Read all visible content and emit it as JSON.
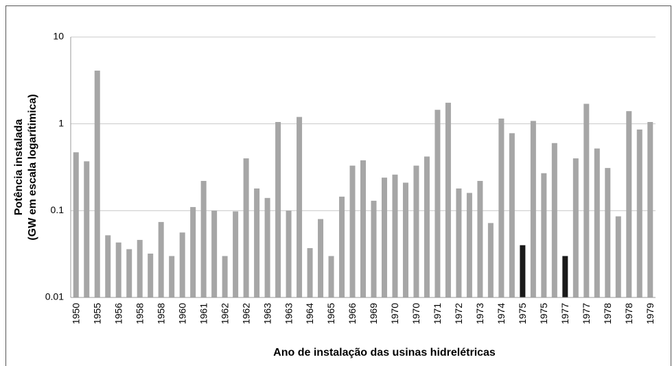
{
  "chart_data": {
    "type": "bar",
    "xlabel": "Ano de instalação das usinas hidrelétricas",
    "ylabel": [
      "Potência instalada",
      "(GW em escala logarítimica)"
    ],
    "categories": [
      "1950",
      null,
      "1955",
      null,
      "1956",
      null,
      "1958",
      null,
      "1958",
      null,
      "1960",
      null,
      "1961",
      null,
      "1962",
      null,
      "1962",
      null,
      "1963",
      null,
      "1963",
      null,
      "1964",
      null,
      "1965",
      null,
      "1966",
      null,
      "1969",
      null,
      "1970",
      null,
      "1970",
      null,
      "1971",
      null,
      "1972",
      null,
      "1973",
      null,
      "1974",
      null,
      "1975",
      null,
      "1975",
      null,
      "1977",
      null,
      "1977",
      null,
      "1978",
      null,
      "1978",
      null,
      "1979"
    ],
    "values": [
      0.47,
      0.37,
      4.1,
      0.052,
      0.043,
      0.036,
      0.046,
      0.032,
      0.074,
      0.03,
      0.056,
      0.11,
      0.22,
      0.1,
      0.03,
      0.098,
      0.4,
      0.18,
      0.14,
      1.05,
      0.1,
      1.2,
      0.037,
      0.08,
      0.03,
      0.145,
      0.33,
      0.38,
      0.13,
      0.24,
      0.26,
      0.21,
      0.33,
      0.42,
      1.45,
      1.75,
      0.18,
      0.16,
      0.22,
      0.072,
      1.15,
      0.78,
      0.04,
      1.08,
      0.27,
      0.6,
      0.03,
      0.4,
      1.7,
      0.52,
      0.31,
      0.086,
      1.4,
      0.86,
      1.05
    ],
    "colors": [
      "#a6a6a6",
      "#a6a6a6",
      "#a6a6a6",
      "#a6a6a6",
      "#a6a6a6",
      "#a6a6a6",
      "#a6a6a6",
      "#a6a6a6",
      "#a6a6a6",
      "#a6a6a6",
      "#a6a6a6",
      "#a6a6a6",
      "#a6a6a6",
      "#a6a6a6",
      "#a6a6a6",
      "#a6a6a6",
      "#a6a6a6",
      "#a6a6a6",
      "#a6a6a6",
      "#a6a6a6",
      "#a6a6a6",
      "#a6a6a6",
      "#a6a6a6",
      "#a6a6a6",
      "#a6a6a6",
      "#a6a6a6",
      "#a6a6a6",
      "#a6a6a6",
      "#a6a6a6",
      "#a6a6a6",
      "#a6a6a6",
      "#a6a6a6",
      "#a6a6a6",
      "#a6a6a6",
      "#a6a6a6",
      "#a6a6a6",
      "#a6a6a6",
      "#a6a6a6",
      "#a6a6a6",
      "#a6a6a6",
      "#a6a6a6",
      "#a6a6a6",
      "#1a1a1a",
      "#a6a6a6",
      "#a6a6a6",
      "#a6a6a6",
      "#1a1a1a",
      "#a6a6a6",
      "#a6a6a6",
      "#a6a6a6",
      "#a6a6a6",
      "#a6a6a6",
      "#a6a6a6",
      "#a6a6a6",
      "#a6a6a6"
    ],
    "ylim": [
      0.01,
      10
    ],
    "yticks": [
      0.01,
      0.1,
      1,
      10
    ],
    "log_y": true,
    "grid": true
  }
}
